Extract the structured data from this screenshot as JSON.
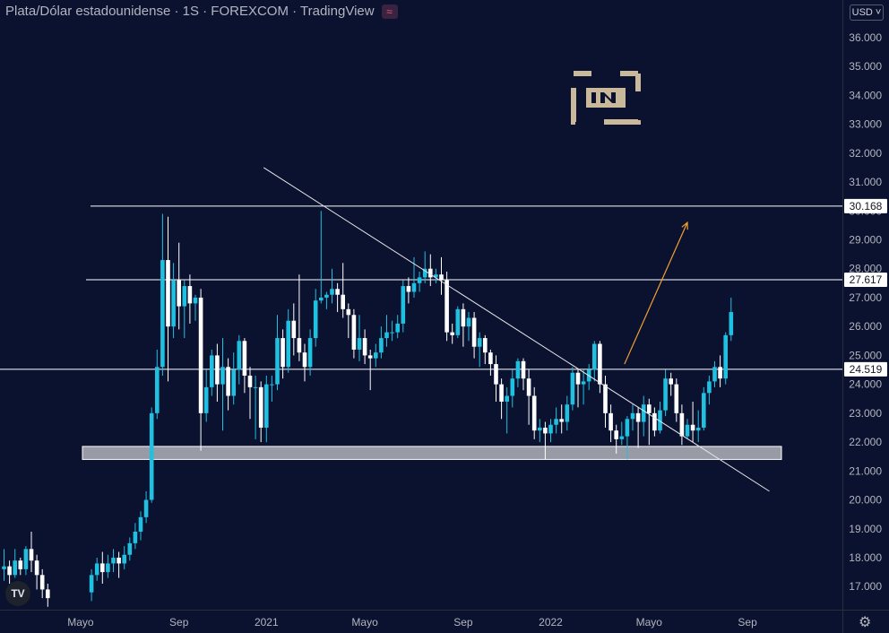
{
  "title": {
    "text": "Plata/Dólar estadounidense · 1S · FOREXCOM · TradingView",
    "badge_icon": "≈"
  },
  "currency": "USD ˅",
  "colors": {
    "background": "#0b1230",
    "up": "#1fc0e0",
    "down": "#ffffff",
    "trendline": "#e6e6e6",
    "arrow": "#f0a030"
  },
  "chart_data": {
    "type": "candlestick",
    "ylim": [
      16.2,
      37.3
    ],
    "yticks": [
      17,
      18,
      19,
      20,
      21,
      22,
      23,
      24,
      25,
      26,
      27,
      28,
      29,
      30,
      31,
      32,
      33,
      34,
      35,
      36
    ],
    "ytick_labels": [
      "17.000",
      "18.000",
      "19.000",
      "20.000",
      "21.000",
      "22.000",
      "23.000",
      "24.000",
      "25.000",
      "26.000",
      "27.000",
      "28.000",
      "29.000",
      "30.000",
      "31.000",
      "32.000",
      "33.000",
      "34.000",
      "35.000",
      "36.000"
    ],
    "xtick_labels": [
      "Mayo",
      "Sep",
      "2021",
      "Mayo",
      "Sep",
      "2022",
      "Mayo",
      "Sep"
    ],
    "xtick_week": [
      14,
      32,
      48,
      66,
      84,
      100,
      118,
      136
    ],
    "horizontal_levels": [
      {
        "value": 30.168,
        "label": "30.168"
      },
      {
        "value": 27.617,
        "label": "27.617"
      },
      {
        "value": 24.519,
        "label": "24.519"
      }
    ],
    "support_zone": [
      21.4,
      21.85
    ],
    "trendline": [
      [
        47.5,
        31.5
      ],
      [
        140,
        20.3
      ]
    ],
    "projection_arrow": [
      [
        113.5,
        24.7
      ],
      [
        125,
        29.6
      ]
    ],
    "candles": [
      [
        0,
        17.6,
        17.7,
        17.2,
        18.3
      ],
      [
        1,
        17.7,
        17.4,
        17.1,
        17.9
      ],
      [
        2,
        17.4,
        17.9,
        17.3,
        18.3
      ],
      [
        3,
        17.9,
        17.6,
        17.4,
        18.0
      ],
      [
        4,
        17.6,
        18.3,
        17.4,
        18.4
      ],
      [
        5,
        18.3,
        17.9,
        17.5,
        18.9
      ],
      [
        6,
        17.9,
        17.4,
        16.9,
        18.1
      ],
      [
        7,
        17.4,
        16.9,
        16.6,
        17.6
      ],
      [
        8,
        16.9,
        16.6,
        16.3,
        17.1
      ],
      [
        16,
        16.8,
        17.4,
        16.5,
        17.6
      ],
      [
        17,
        17.4,
        17.8,
        17.2,
        18.0
      ],
      [
        18,
        17.8,
        17.5,
        17.1,
        18.2
      ],
      [
        19,
        17.5,
        17.8,
        17.3,
        18.1
      ],
      [
        20,
        17.8,
        18.0,
        17.5,
        18.3
      ],
      [
        21,
        18.0,
        17.8,
        17.3,
        18.2
      ],
      [
        22,
        17.8,
        18.1,
        17.6,
        18.4
      ],
      [
        23,
        18.1,
        18.5,
        17.9,
        18.7
      ],
      [
        24,
        18.5,
        18.9,
        18.3,
        19.2
      ],
      [
        25,
        18.9,
        19.4,
        18.6,
        19.6
      ],
      [
        26,
        19.4,
        20.0,
        19.2,
        20.3
      ],
      [
        27,
        20.0,
        23.0,
        19.9,
        23.2
      ],
      [
        28,
        23.0,
        24.6,
        22.8,
        25.2
      ],
      [
        29,
        24.6,
        28.3,
        24.3,
        29.9
      ],
      [
        30,
        28.3,
        26.0,
        24.1,
        29.8
      ],
      [
        31,
        26.0,
        27.6,
        25.6,
        28.2
      ],
      [
        32,
        27.6,
        26.7,
        25.9,
        28.9
      ],
      [
        33,
        26.7,
        27.4,
        25.6,
        27.6
      ],
      [
        34,
        27.4,
        26.8,
        26.1,
        27.8
      ],
      [
        35,
        26.8,
        27.0,
        26.2,
        27.1
      ],
      [
        36,
        27.0,
        23.0,
        21.7,
        27.3
      ],
      [
        37,
        23.0,
        23.9,
        22.7,
        24.5
      ],
      [
        38,
        23.9,
        25.0,
        23.6,
        25.2
      ],
      [
        39,
        25.0,
        24.0,
        23.4,
        25.4
      ],
      [
        40,
        24.0,
        24.6,
        22.4,
        25.6
      ],
      [
        41,
        24.6,
        23.6,
        23.1,
        24.9
      ],
      [
        42,
        23.6,
        24.5,
        23.3,
        25.1
      ],
      [
        43,
        24.5,
        25.5,
        24.0,
        25.7
      ],
      [
        44,
        25.5,
        24.3,
        23.7,
        25.6
      ],
      [
        45,
        24.3,
        23.9,
        22.8,
        24.6
      ],
      [
        46,
        23.9,
        23.9,
        22.1,
        24.3
      ],
      [
        47,
        23.9,
        22.5,
        22.0,
        24.1
      ],
      [
        48,
        22.5,
        24.0,
        22.0,
        24.3
      ],
      [
        49,
        24.0,
        24.0,
        23.4,
        24.3
      ],
      [
        50,
        24.0,
        25.6,
        23.8,
        26.4
      ],
      [
        51,
        25.6,
        24.6,
        24.2,
        25.9
      ],
      [
        52,
        24.6,
        26.2,
        24.4,
        26.6
      ],
      [
        53,
        26.2,
        25.6,
        25.0,
        26.8
      ],
      [
        54,
        25.6,
        25.1,
        24.8,
        27.8
      ],
      [
        55,
        25.1,
        24.6,
        24.1,
        25.4
      ],
      [
        56,
        24.6,
        25.6,
        24.3,
        25.9
      ],
      [
        57,
        25.6,
        26.9,
        25.3,
        27.3
      ],
      [
        58,
        26.9,
        27.0,
        26.8,
        30.0
      ],
      [
        59,
        27.0,
        27.1,
        26.6,
        27.2
      ],
      [
        60,
        27.1,
        27.3,
        26.8,
        28.0
      ],
      [
        61,
        27.3,
        27.1,
        26.5,
        27.5
      ],
      [
        62,
        27.1,
        26.6,
        26.3,
        28.2
      ],
      [
        63,
        26.6,
        26.4,
        25.6,
        26.8
      ],
      [
        64,
        26.4,
        25.2,
        24.9,
        26.6
      ],
      [
        65,
        25.2,
        25.6,
        24.8,
        26.4
      ],
      [
        66,
        25.6,
        25.0,
        24.7,
        25.9
      ],
      [
        67,
        25.0,
        24.9,
        23.8,
        25.2
      ],
      [
        68,
        24.9,
        25.1,
        24.6,
        25.4
      ],
      [
        69,
        25.1,
        25.6,
        24.9,
        26.0
      ],
      [
        70,
        25.6,
        25.8,
        25.3,
        26.4
      ],
      [
        71,
        25.8,
        25.8,
        25.5,
        26.2
      ],
      [
        72,
        25.8,
        26.1,
        25.6,
        26.4
      ],
      [
        73,
        26.1,
        27.4,
        25.8,
        27.6
      ],
      [
        74,
        27.4,
        27.2,
        26.8,
        27.7
      ],
      [
        75,
        27.2,
        27.5,
        27.0,
        28.4
      ],
      [
        76,
        27.5,
        27.7,
        27.2,
        27.9
      ],
      [
        77,
        27.7,
        28.0,
        27.5,
        28.6
      ],
      [
        78,
        28.0,
        27.7,
        27.4,
        28.5
      ],
      [
        79,
        27.7,
        27.8,
        27.5,
        28.0
      ],
      [
        80,
        27.8,
        27.6,
        27.1,
        28.4
      ],
      [
        81,
        27.6,
        25.8,
        25.5,
        27.9
      ],
      [
        82,
        25.8,
        25.7,
        25.4,
        26.1
      ],
      [
        83,
        25.7,
        26.6,
        25.6,
        26.7
      ],
      [
        84,
        26.6,
        26.0,
        25.3,
        26.8
      ],
      [
        85,
        26.0,
        26.3,
        25.5,
        26.5
      ],
      [
        86,
        26.3,
        25.3,
        24.9,
        26.5
      ],
      [
        87,
        25.3,
        25.6,
        24.6,
        25.8
      ],
      [
        88,
        25.6,
        25.1,
        24.7,
        25.7
      ],
      [
        89,
        25.1,
        24.7,
        24.3,
        25.2
      ],
      [
        90,
        24.7,
        24.0,
        23.4,
        25.0
      ],
      [
        91,
        24.0,
        23.4,
        22.8,
        24.2
      ],
      [
        92,
        23.4,
        23.6,
        22.3,
        23.9
      ],
      [
        93,
        23.6,
        24.2,
        23.2,
        24.5
      ],
      [
        94,
        24.2,
        24.8,
        23.9,
        24.9
      ],
      [
        95,
        24.8,
        24.2,
        23.8,
        24.9
      ],
      [
        96,
        24.2,
        23.6,
        22.6,
        24.5
      ],
      [
        97,
        23.6,
        22.4,
        22.1,
        23.9
      ],
      [
        98,
        22.4,
        22.5,
        22.0,
        22.8
      ],
      [
        99,
        22.5,
        22.3,
        21.4,
        22.7
      ],
      [
        100,
        22.3,
        22.6,
        22.0,
        22.8
      ],
      [
        101,
        22.6,
        22.8,
        22.3,
        23.2
      ],
      [
        102,
        22.8,
        22.7,
        22.3,
        23.3
      ],
      [
        103,
        22.7,
        23.3,
        22.4,
        23.6
      ],
      [
        104,
        23.3,
        24.4,
        23.1,
        24.6
      ],
      [
        105,
        24.4,
        24.0,
        23.2,
        24.5
      ],
      [
        106,
        24.0,
        24.1,
        23.3,
        24.5
      ],
      [
        107,
        24.1,
        24.5,
        23.8,
        24.7
      ],
      [
        108,
        24.5,
        25.4,
        24.1,
        25.5
      ],
      [
        109,
        25.4,
        24.0,
        23.7,
        25.5
      ],
      [
        110,
        24.0,
        23.0,
        22.5,
        24.3
      ],
      [
        111,
        23.0,
        22.4,
        22.0,
        23.3
      ],
      [
        112,
        22.4,
        22.1,
        21.6,
        22.6
      ],
      [
        113,
        22.1,
        22.2,
        21.9,
        22.7
      ],
      [
        114,
        22.2,
        22.8,
        21.4,
        22.9
      ],
      [
        115,
        22.8,
        23.0,
        22.4,
        23.3
      ],
      [
        116,
        23.0,
        22.7,
        21.8,
        23.2
      ],
      [
        117,
        22.7,
        23.3,
        22.2,
        23.6
      ],
      [
        118,
        23.3,
        23.0,
        21.9,
        23.5
      ],
      [
        119,
        23.0,
        22.4,
        22.2,
        23.2
      ],
      [
        120,
        22.4,
        23.1,
        22.3,
        23.4
      ],
      [
        121,
        23.1,
        24.2,
        22.9,
        24.5
      ],
      [
        122,
        24.2,
        24.0,
        23.6,
        24.4
      ],
      [
        123,
        24.0,
        23.0,
        22.7,
        24.2
      ],
      [
        124,
        23.0,
        22.2,
        21.9,
        23.3
      ],
      [
        125,
        22.2,
        22.6,
        22.1,
        22.8
      ],
      [
        126,
        22.6,
        22.4,
        22.0,
        23.4
      ],
      [
        127,
        22.4,
        22.5,
        22.0,
        23.1
      ],
      [
        128,
        22.5,
        23.7,
        22.4,
        23.9
      ],
      [
        129,
        23.7,
        24.1,
        23.3,
        24.3
      ],
      [
        130,
        24.1,
        24.6,
        23.9,
        24.8
      ],
      [
        131,
        24.6,
        24.2,
        23.9,
        25.0
      ],
      [
        132,
        24.2,
        25.7,
        24.0,
        25.8
      ],
      [
        133,
        25.7,
        26.5,
        25.5,
        27.0
      ]
    ]
  }
}
